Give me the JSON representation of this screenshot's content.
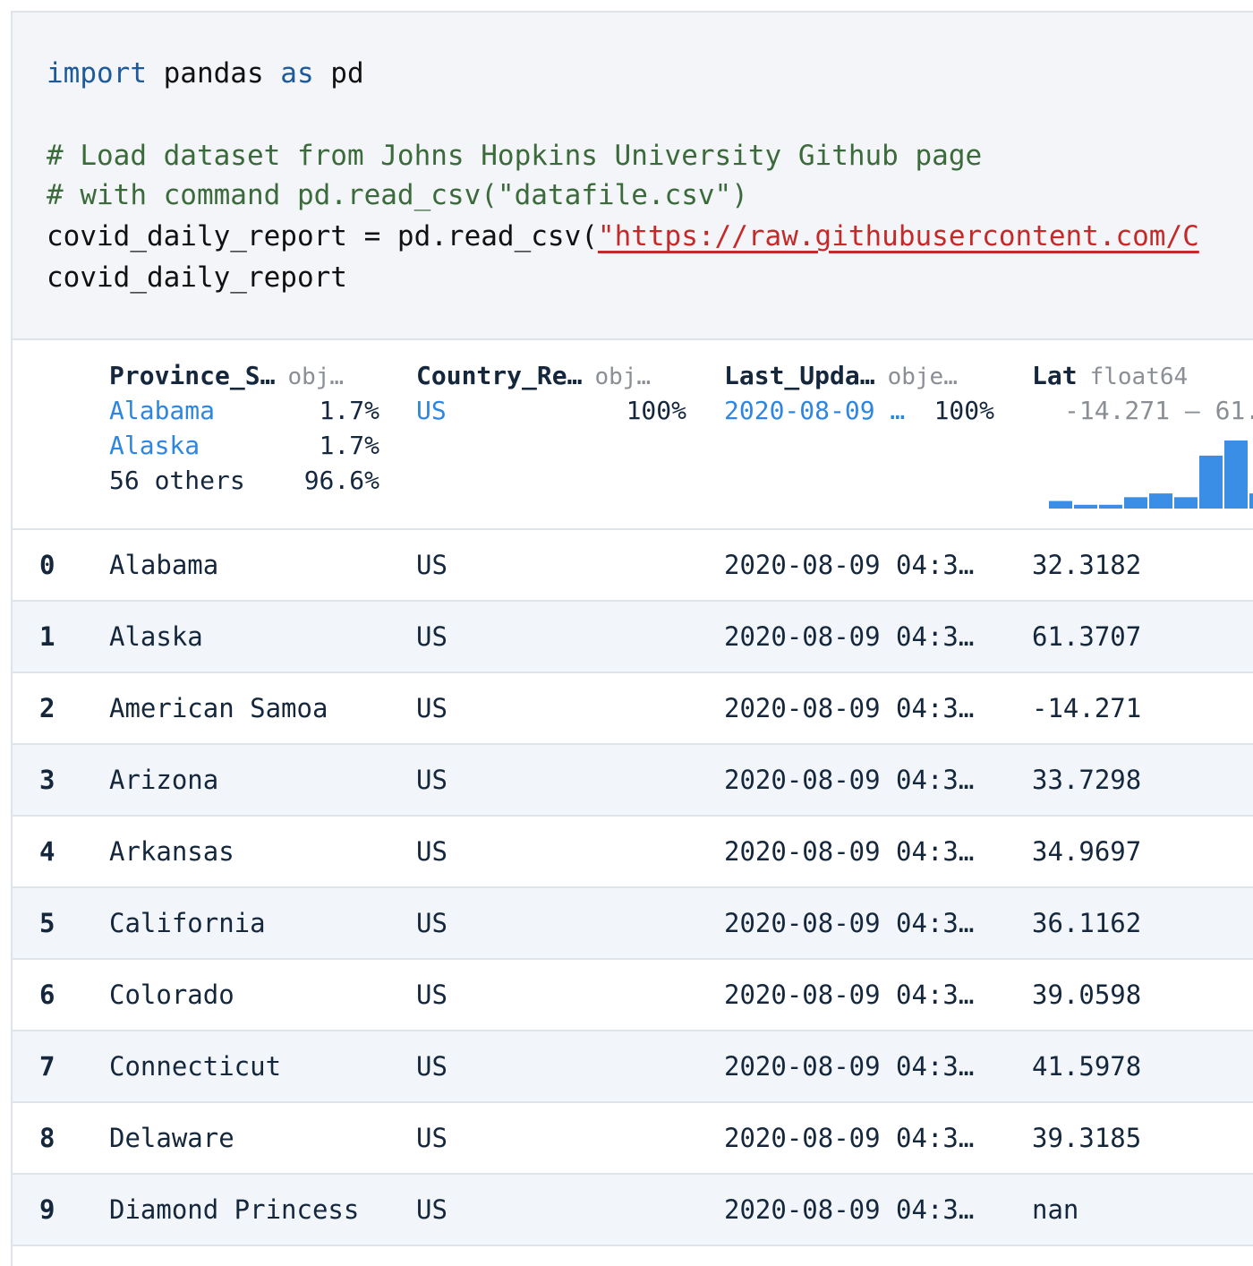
{
  "code": {
    "line1": {
      "kw1": "import",
      "mid": " pandas ",
      "kw2": "as",
      "end": " pd"
    },
    "comment1": "# Load dataset from Johns Hopkins University Github page",
    "comment2": "# with command pd.read_csv(\"datafile.csv\")",
    "line3": {
      "prefix": "covid_daily_report = pd.read_csv(",
      "string": "\"https://raw.githubusercontent.com/C"
    },
    "line4": "covid_daily_report"
  },
  "summary": {
    "columns": [
      {
        "name": "Province_S…",
        "type": "obj…",
        "values": [
          {
            "label": "Alabama",
            "pct": "1.7%"
          },
          {
            "label": "Alaska",
            "pct": "1.7%"
          }
        ],
        "others": {
          "label": "56 others",
          "pct": "96.6%"
        }
      },
      {
        "name": "Country_Re…",
        "type": "obj…",
        "values": [
          {
            "label": "US",
            "pct": "100%"
          }
        ]
      },
      {
        "name": "Last_Upda…",
        "type": "obje…",
        "values": [
          {
            "label": "2020-08-09 …",
            "pct": "100%"
          }
        ]
      },
      {
        "name": "Lat",
        "type": "float64",
        "range": "-14.271 – 61.",
        "histogram": [
          2,
          1,
          1,
          3,
          4,
          3,
          14,
          18,
          4
        ]
      }
    ],
    "accent": "#3a8ee6"
  },
  "rows": [
    {
      "index": "0",
      "province": "Alabama",
      "country": "US",
      "updated": "2020-08-09 04:3…",
      "lat": "32.3182"
    },
    {
      "index": "1",
      "province": "Alaska",
      "country": "US",
      "updated": "2020-08-09 04:3…",
      "lat": "61.3707"
    },
    {
      "index": "2",
      "province": "American Samoa",
      "country": "US",
      "updated": "2020-08-09 04:3…",
      "lat": "-14.271"
    },
    {
      "index": "3",
      "province": "Arizona",
      "country": "US",
      "updated": "2020-08-09 04:3…",
      "lat": "33.7298"
    },
    {
      "index": "4",
      "province": "Arkansas",
      "country": "US",
      "updated": "2020-08-09 04:3…",
      "lat": "34.9697"
    },
    {
      "index": "5",
      "province": "California",
      "country": "US",
      "updated": "2020-08-09 04:3…",
      "lat": "36.1162"
    },
    {
      "index": "6",
      "province": "Colorado",
      "country": "US",
      "updated": "2020-08-09 04:3…",
      "lat": "39.0598"
    },
    {
      "index": "7",
      "province": "Connecticut",
      "country": "US",
      "updated": "2020-08-09 04:3…",
      "lat": "41.5978"
    },
    {
      "index": "8",
      "province": "Delaware",
      "country": "US",
      "updated": "2020-08-09 04:3…",
      "lat": "39.3185"
    },
    {
      "index": "9",
      "province": "Diamond Princess",
      "country": "US",
      "updated": "2020-08-09 04:3…",
      "lat": "nan"
    }
  ]
}
